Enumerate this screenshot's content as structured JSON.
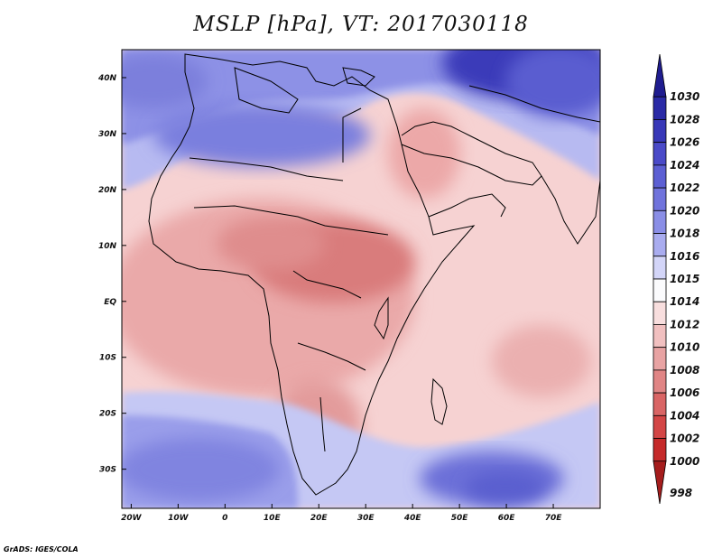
{
  "title": "MSLP [hPa], VT: 2017030118",
  "credit": "GrADS: IGES/COLA",
  "map": {
    "lon_range": [
      -22,
      80
    ],
    "lat_range": [
      -37,
      45
    ],
    "xaxis_labels": [
      {
        "lon": -20,
        "text": "20W"
      },
      {
        "lon": -10,
        "text": "10W"
      },
      {
        "lon": 0,
        "text": "0"
      },
      {
        "lon": 10,
        "text": "10E"
      },
      {
        "lon": 20,
        "text": "20E"
      },
      {
        "lon": 30,
        "text": "30E"
      },
      {
        "lon": 40,
        "text": "40E"
      },
      {
        "lon": 50,
        "text": "50E"
      },
      {
        "lon": 60,
        "text": "60E"
      },
      {
        "lon": 70,
        "text": "70E"
      }
    ],
    "yaxis_labels": [
      {
        "lat": 40,
        "text": "40N"
      },
      {
        "lat": 30,
        "text": "30N"
      },
      {
        "lat": 20,
        "text": "20N"
      },
      {
        "lat": 10,
        "text": "10N"
      },
      {
        "lat": 0,
        "text": "EQ"
      },
      {
        "lat": -10,
        "text": "10S"
      },
      {
        "lat": -20,
        "text": "20S"
      },
      {
        "lat": -30,
        "text": "30S"
      }
    ]
  },
  "colorbar": {
    "levels": [
      {
        "label": "1030",
        "color": "#1f1c8f"
      },
      {
        "label": "1028",
        "color": "#2a2aa6"
      },
      {
        "label": "1026",
        "color": "#3838b8"
      },
      {
        "label": "1024",
        "color": "#4a4ac8"
      },
      {
        "label": "1022",
        "color": "#5c5fd3"
      },
      {
        "label": "1020",
        "color": "#7073dc"
      },
      {
        "label": "1018",
        "color": "#8a8ee6"
      },
      {
        "label": "1016",
        "color": "#a9acef"
      },
      {
        "label": "1015",
        "color": "#d3d5f8"
      },
      {
        "label": "1014",
        "color": "#fbfbfd"
      },
      {
        "label": "1012",
        "color": "#f8dede"
      },
      {
        "label": "1010",
        "color": "#f1c0c0"
      },
      {
        "label": "1008",
        "color": "#e8a3a3"
      },
      {
        "label": "1006",
        "color": "#e08585"
      },
      {
        "label": "1004",
        "color": "#d96565"
      },
      {
        "label": "1002",
        "color": "#d34646"
      },
      {
        "label": "1000",
        "color": "#c52a2a"
      },
      {
        "label": "998",
        "color": "#a51d1d"
      }
    ]
  }
}
